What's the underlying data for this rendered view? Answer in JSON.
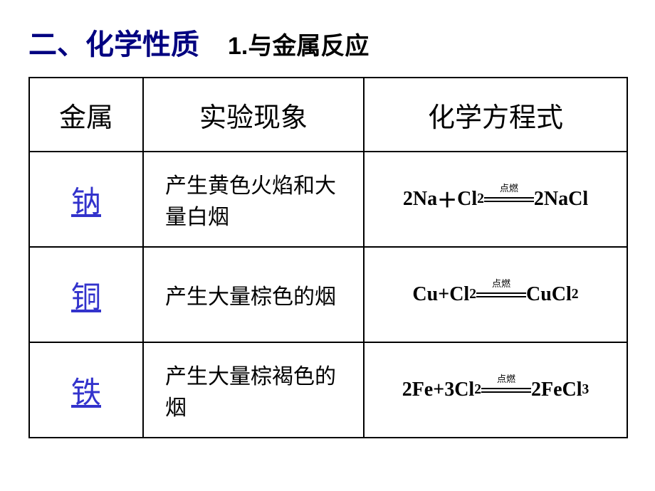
{
  "header": {
    "section_title": "二、化学性质",
    "sub_title": "1.与金属反应"
  },
  "table": {
    "columns": [
      "金属",
      "实验现象",
      "化学方程式"
    ],
    "condition_label": "点燃",
    "rows": [
      {
        "metal": "钠",
        "phenomenon": "产生黄色火焰和大量白烟",
        "lhs": "2Na",
        "plus": "＋",
        "reagent": "Cl",
        "reagent_sub": "2",
        "rhs": "2NaCl",
        "rhs_sub": ""
      },
      {
        "metal": "铜",
        "phenomenon": "产生大量棕色的烟",
        "lhs": "Cu",
        "plus": "+",
        "reagent": "Cl",
        "reagent_sub": "2",
        "rhs": "CuCl",
        "rhs_sub": "2"
      },
      {
        "metal": "铁",
        "phenomenon": "产生大量棕褐色的烟",
        "lhs": "2Fe",
        "plus": "+",
        "reagent": "3Cl",
        "reagent_sub": "2",
        "rhs": "2FeCl",
        "rhs_sub": "3"
      }
    ]
  },
  "style": {
    "section_title_color": "#000080",
    "link_color": "#3333cc",
    "border_color": "#000000",
    "background": "#ffffff"
  }
}
